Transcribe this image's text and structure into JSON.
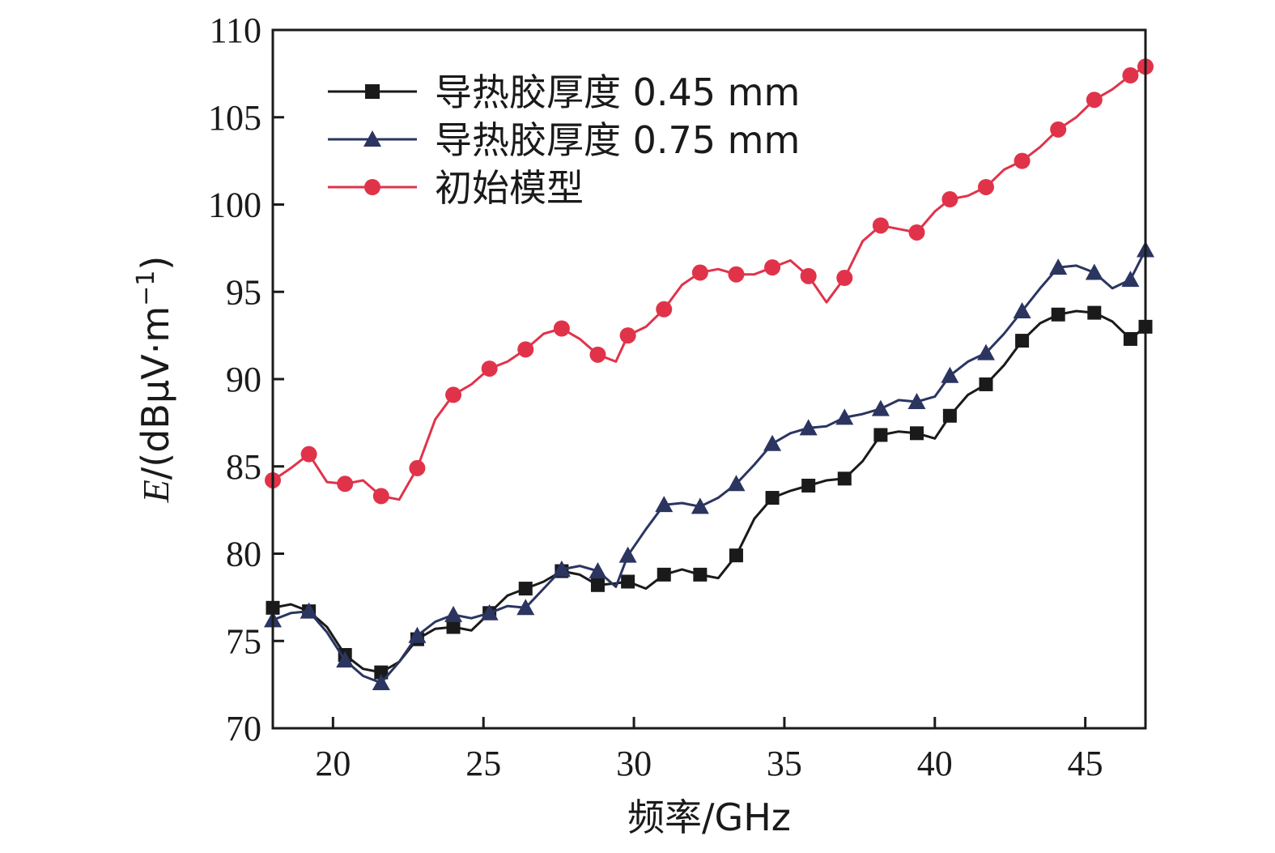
{
  "chart_data": {
    "type": "line",
    "title": "",
    "xlabel": "频率/GHz",
    "ylabel": "E/(dBμV·m⁻¹)",
    "ylabel_italic": "E",
    "ylabel_rest": "/(dBμV·m",
    "ylabel_sup": "−1",
    "ylabel_close": ")",
    "xlim": [
      18,
      47
    ],
    "ylim": [
      70,
      110
    ],
    "xticks": [
      20,
      25,
      30,
      35,
      40,
      45
    ],
    "yticks": [
      70,
      75,
      80,
      85,
      90,
      95,
      100,
      105,
      110
    ],
    "grid": false,
    "legend_position": "top-left",
    "series": [
      {
        "name": "导热胶厚度 0.45 mm",
        "color": "#1a1a1a",
        "marker": "square",
        "x": [
          18.0,
          18.6,
          19.2,
          19.8,
          20.4,
          21.0,
          21.6,
          22.2,
          22.8,
          23.4,
          24.0,
          24.6,
          25.2,
          25.8,
          26.4,
          27.0,
          27.6,
          28.2,
          28.8,
          29.4,
          29.8,
          30.4,
          31.0,
          31.6,
          32.2,
          32.8,
          33.4,
          34.0,
          34.6,
          35.2,
          35.8,
          36.4,
          37.0,
          37.6,
          38.2,
          38.8,
          39.4,
          40.0,
          40.5,
          41.1,
          41.7,
          42.3,
          42.9,
          43.5,
          44.1,
          44.7,
          45.3,
          45.9,
          46.5,
          47.0
        ],
        "y": [
          76.9,
          77.1,
          76.7,
          75.8,
          74.2,
          73.4,
          73.2,
          73.8,
          75.1,
          75.7,
          75.8,
          75.6,
          76.6,
          77.6,
          78.0,
          78.4,
          79.0,
          78.8,
          78.2,
          78.3,
          78.4,
          78.0,
          78.8,
          79.1,
          78.8,
          78.6,
          79.9,
          82.0,
          83.2,
          83.6,
          83.9,
          84.2,
          84.3,
          85.3,
          86.8,
          87.0,
          86.9,
          86.6,
          87.9,
          89.1,
          89.7,
          90.8,
          92.2,
          93.2,
          93.7,
          93.9,
          93.8,
          93.3,
          92.3,
          93.0
        ],
        "markers_x": [
          18.0,
          19.2,
          20.4,
          21.6,
          22.8,
          24.0,
          25.2,
          26.4,
          27.6,
          28.8,
          29.8,
          31.0,
          32.2,
          33.4,
          34.6,
          35.8,
          37.0,
          38.2,
          39.4,
          40.5,
          41.7,
          42.9,
          44.1,
          45.3,
          46.5,
          47.0
        ],
        "markers_y": [
          76.9,
          76.7,
          74.2,
          73.2,
          75.1,
          75.8,
          76.6,
          78.0,
          79.0,
          78.2,
          78.4,
          78.8,
          78.8,
          79.9,
          83.2,
          83.9,
          84.3,
          86.8,
          86.9,
          87.9,
          89.7,
          92.2,
          93.7,
          93.8,
          92.3,
          93.0
        ]
      },
      {
        "name": "导热胶厚度 0.75 mm",
        "color": "#2b3560",
        "marker": "triangle",
        "x": [
          18.0,
          18.6,
          19.2,
          19.8,
          20.4,
          21.0,
          21.6,
          22.2,
          22.8,
          23.4,
          24.0,
          24.6,
          25.2,
          25.8,
          26.4,
          27.0,
          27.6,
          28.2,
          28.8,
          29.4,
          29.8,
          30.4,
          31.0,
          31.6,
          32.2,
          32.8,
          33.4,
          34.0,
          34.6,
          35.2,
          35.8,
          36.4,
          37.0,
          37.6,
          38.2,
          38.8,
          39.4,
          40.0,
          40.5,
          41.1,
          41.7,
          42.3,
          42.9,
          43.5,
          44.1,
          44.7,
          45.3,
          45.9,
          46.5,
          47.0
        ],
        "y": [
          76.2,
          76.6,
          76.7,
          75.5,
          73.9,
          73.0,
          72.6,
          73.8,
          75.3,
          76.1,
          76.5,
          76.3,
          76.6,
          77.0,
          76.9,
          78.0,
          79.1,
          79.3,
          79.0,
          78.1,
          79.9,
          81.4,
          82.8,
          82.9,
          82.7,
          83.2,
          84.0,
          85.1,
          86.3,
          86.9,
          87.2,
          87.3,
          87.8,
          88.0,
          88.3,
          88.8,
          88.7,
          89.0,
          90.2,
          91.0,
          91.5,
          92.6,
          93.9,
          95.2,
          96.4,
          96.5,
          96.1,
          95.2,
          95.7,
          97.4
        ],
        "markers_x": [
          18.0,
          19.2,
          20.4,
          21.6,
          22.8,
          24.0,
          25.2,
          26.4,
          27.6,
          28.8,
          29.8,
          31.0,
          32.2,
          33.4,
          34.6,
          35.8,
          37.0,
          38.2,
          39.4,
          40.5,
          41.7,
          42.9,
          44.1,
          45.3,
          46.5,
          47.0
        ],
        "markers_y": [
          76.2,
          76.7,
          73.9,
          72.6,
          75.3,
          76.5,
          76.6,
          76.9,
          79.1,
          79.0,
          79.9,
          82.8,
          82.7,
          84.0,
          86.3,
          87.2,
          87.8,
          88.3,
          88.7,
          90.2,
          91.5,
          93.9,
          96.4,
          96.1,
          95.7,
          97.4
        ]
      },
      {
        "name": "初始模型",
        "color": "#e0334a",
        "marker": "circle",
        "x": [
          18.0,
          18.6,
          19.2,
          19.8,
          20.4,
          21.0,
          21.6,
          22.2,
          22.8,
          23.4,
          24.0,
          24.6,
          25.2,
          25.8,
          26.4,
          27.0,
          27.6,
          28.2,
          28.8,
          29.4,
          29.8,
          30.4,
          31.0,
          31.6,
          32.2,
          32.8,
          33.4,
          34.0,
          34.6,
          35.2,
          35.8,
          36.4,
          37.0,
          37.6,
          38.2,
          38.8,
          39.4,
          40.0,
          40.5,
          41.1,
          41.7,
          42.3,
          42.9,
          43.5,
          44.1,
          44.7,
          45.3,
          45.9,
          46.5,
          47.0
        ],
        "y": [
          84.2,
          84.9,
          85.7,
          84.1,
          84.0,
          84.2,
          83.3,
          83.1,
          84.9,
          87.7,
          89.1,
          89.7,
          90.6,
          91.0,
          91.7,
          92.6,
          92.9,
          92.3,
          91.4,
          91.0,
          92.5,
          93.0,
          94.0,
          95.4,
          96.1,
          96.3,
          96.0,
          96.0,
          96.4,
          96.8,
          95.9,
          94.4,
          95.8,
          97.9,
          98.8,
          98.6,
          98.4,
          99.6,
          100.3,
          100.5,
          101.0,
          102.0,
          102.5,
          103.3,
          104.3,
          105.0,
          106.0,
          106.6,
          107.4,
          107.9
        ],
        "markers_x": [
          18.0,
          19.2,
          20.4,
          21.6,
          22.8,
          24.0,
          25.2,
          26.4,
          27.6,
          28.8,
          29.8,
          31.0,
          32.2,
          33.4,
          34.6,
          35.8,
          37.0,
          38.2,
          39.4,
          40.5,
          41.7,
          42.9,
          44.1,
          45.3,
          46.5,
          47.0
        ],
        "markers_y": [
          84.2,
          85.7,
          84.0,
          83.3,
          84.9,
          89.1,
          90.6,
          91.7,
          92.9,
          91.4,
          92.5,
          94.0,
          96.1,
          96.0,
          96.4,
          95.9,
          95.8,
          98.8,
          98.4,
          100.3,
          101.0,
          102.5,
          104.3,
          106.0,
          107.4,
          107.9
        ]
      }
    ]
  }
}
